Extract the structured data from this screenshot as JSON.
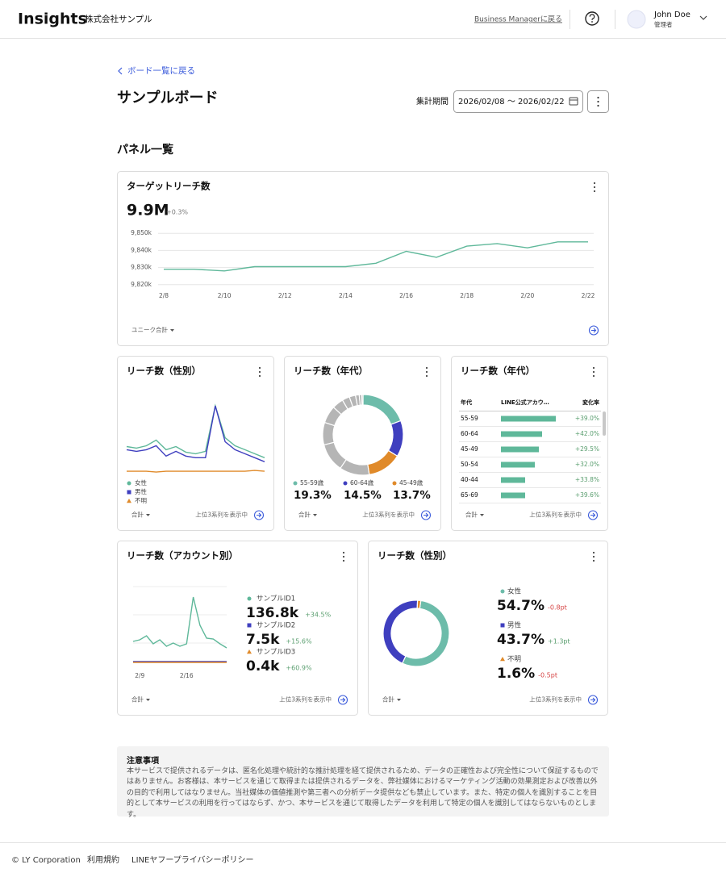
{
  "header": {
    "logo": "Insights",
    "company": "株式会社サンプル",
    "back_link": "Business Managerに戻る",
    "user_name": "John Doe",
    "user_role": "管理者"
  },
  "board": {
    "back": "ボード一覧に戻る",
    "title": "サンプルボード",
    "period_label": "集計期間",
    "period": "2026/02/08 〜 2026/02/22",
    "section": "パネル一覧"
  },
  "panels": [
    {
      "title": "ターゲットリーチ数",
      "metric": "9.9M",
      "change": "+0.3%",
      "dropdown": "ユニーク合計",
      "chart": {
        "type": "line",
        "categories": [
          "2/8",
          null,
          "2/10",
          null,
          "2/12",
          null,
          "2/14",
          null,
          "2/16",
          null,
          "2/18",
          null,
          "2/20",
          null,
          "2/22"
        ],
        "series": [
          {
            "color": "#5fb89a",
            "values": [
              9829,
              9829,
              9828,
              9830.5,
              9830.5,
              9830.5,
              9830.5,
              9832.5,
              9839.5,
              9836,
              9842.5,
              9844,
              9841.5,
              9845,
              9845
            ]
          }
        ],
        "ylim": [
          9818,
          9852
        ],
        "yticks": [
          {
            "value": 9820,
            "label": "9,820k"
          },
          {
            "value": 9830,
            "label": "9,830k"
          },
          {
            "value": 9840,
            "label": "9,840k"
          },
          {
            "value": 9850,
            "label": "9,850k"
          }
        ],
        "grid": true
      }
    },
    {
      "title": "リーチ数（性別）",
      "dropdown": "合計",
      "footnote": "上位3系列を表示中",
      "chart": {
        "type": "line",
        "categories": [
          null,
          null,
          null,
          null,
          null,
          null,
          null,
          null,
          null,
          null,
          null,
          null,
          null,
          null,
          null
        ],
        "series": [
          {
            "name": "女性",
            "color": "#5fb89a",
            "values": [
              44,
              42,
              45,
              52,
              40,
              44,
              37,
              35,
              38,
              95,
              55,
              45,
              40,
              35,
              30
            ]
          },
          {
            "name": "男性",
            "color": "#3f3fbf",
            "values": [
              40,
              38,
              40,
              45,
              32,
              38,
              32,
              30,
              30,
              95,
              50,
              40,
              35,
              30,
              25
            ]
          },
          {
            "name": "不明",
            "color": "#e08a2a",
            "values": [
              13,
              13,
              13,
              12,
              13,
              13,
              13,
              13,
              13,
              13,
              13,
              13,
              13,
              14,
              13
            ]
          }
        ]
      }
    },
    {
      "title": "リーチ数（年代）",
      "dropdown": "合計",
      "footnote": "上位3系列を表示中",
      "chart": {
        "type": "donut",
        "categories": [
          "55-59歳",
          "60-64歳",
          "45-49歳",
          null,
          null,
          null,
          null,
          null,
          null,
          null,
          null,
          null,
          null
        ],
        "values": [
          19.3,
          14.5,
          13.7,
          12.0,
          11.5,
          9.0,
          7.0,
          4.5,
          3.0,
          2.5,
          1.5,
          1.0,
          0.5
        ],
        "value_labels": [
          "19.3%",
          "14.5%",
          "13.7%",
          null,
          null,
          null,
          null,
          null,
          null,
          null,
          null,
          null,
          null
        ],
        "colors": [
          "#6dbcaa",
          "#3f3fbf",
          "#e08a2a",
          "#b5b5b5",
          "#b5b5b5",
          "#b5b5b5",
          "#b5b5b5",
          "#b5b5b5",
          "#b5b5b5",
          "#b5b5b5",
          "#b5b5b5",
          "#b5b5b5",
          "#b5b5b5"
        ]
      }
    },
    {
      "title": "リーチ数（年代）",
      "dropdown": "合計",
      "footnote": "上位3系列を表示中",
      "chart": {
        "type": "table_bar",
        "color": "#5fb89a",
        "columns": [
          "年代",
          "LINE公式アカウ…",
          "変化率"
        ],
        "rows": [
          {
            "age": "55-59",
            "value": 68,
            "change": "+39.0%"
          },
          {
            "age": "60-64",
            "value": 51,
            "change": "+42.0%"
          },
          {
            "age": "45-49",
            "value": 47,
            "change": "+29.5%"
          },
          {
            "age": "50-54",
            "value": 42,
            "change": "+32.0%"
          },
          {
            "age": "40-44",
            "value": 30,
            "change": "+33.8%"
          },
          {
            "age": "65-69",
            "value": 30,
            "change": "+39.6%"
          }
        ]
      }
    },
    {
      "title": "リーチ数（アカウント別）",
      "dropdown": "合計",
      "footnote": "上位3系列を表示中",
      "chart": {
        "type": "line",
        "categories": [
          null,
          "2/9",
          null,
          null,
          null,
          null,
          null,
          null,
          "2/16",
          null,
          null,
          null,
          null,
          null,
          null
        ],
        "series": [
          {
            "name": "サンプルID1",
            "color": "#5fb89a",
            "total": "136.8k",
            "change": "+34.5%",
            "values": [
              33,
              35,
              40,
              30,
              35,
              27,
              31,
              27,
              30,
              88,
              53,
              37,
              36,
              30,
              25
            ]
          },
          {
            "name": "サンプルID2",
            "color": "#3f3fbf",
            "total": "7.5k",
            "change": "+15.6%",
            "values": [
              8,
              8,
              8,
              8,
              8,
              8,
              8,
              8,
              8,
              8,
              8,
              8,
              8,
              8,
              8
            ]
          },
          {
            "name": "サンプルID3",
            "color": "#e08a2a",
            "total": "0.4k",
            "change": "+60.9%",
            "values": [
              7,
              7,
              7,
              7,
              7,
              7,
              7,
              7,
              7,
              7,
              7,
              7,
              7,
              7,
              7
            ]
          }
        ]
      }
    },
    {
      "title": "リーチ数（性別）",
      "dropdown": "合計",
      "footnote": "上位3系列を表示中",
      "chart": {
        "type": "donut",
        "categories": [
          "女性",
          "男性",
          "不明"
        ],
        "values": [
          54.7,
          43.7,
          1.6
        ],
        "value_labels": [
          "54.7%",
          "43.7%",
          "1.6%"
        ],
        "changes": [
          "-0.8pt",
          "+1.3pt",
          "-0.5pt"
        ],
        "colors": [
          "#6dbcaa",
          "#3f3fbf",
          "#e08a2a"
        ]
      }
    }
  ],
  "notice": {
    "title": "注意事項",
    "body": "本サービスで提供されるデータは、匿名化処理や統計的な推計処理を経て提供されるため、データの正確性および完全性について保証するものではありません。お客様は、本サービスを通じて取得または提供されるデータを、弊社媒体におけるマーケティング活動の効果測定および改善以外の目的で利用してはなりません。当社媒体の価値推測や第三者への分析データ提供なども禁止しています。また、特定の個人を識別することを目的として本サービスの利用を行ってはならず、かつ、本サービスを通じて取得したデータを利用して特定の個人を識別してはならないものとします。"
  },
  "footer": {
    "copyright": "© LY Corporation",
    "terms": "利用規約",
    "privacy": "LINEヤフープライバシーポリシー"
  }
}
